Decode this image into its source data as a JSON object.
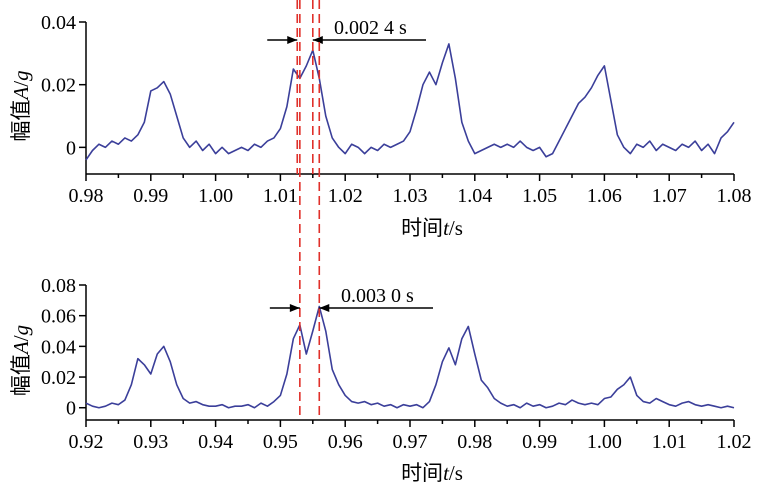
{
  "chart_data": [
    {
      "type": "line",
      "xlabel_prefix": "时间",
      "xlabel_var": "t",
      "xlabel_unit": "/s",
      "ylabel_prefix": "幅值",
      "ylabel_var": "A",
      "ylabel_sep": "/",
      "ylabel_unit": "g",
      "xlim": [
        0.98,
        1.08
      ],
      "ylim": [
        -0.0085,
        0.04
      ],
      "xticks": [
        0.98,
        0.99,
        1.0,
        1.01,
        1.02,
        1.03,
        1.04,
        1.05,
        1.06,
        1.07,
        1.08
      ],
      "xtick_labels": [
        "0.98",
        "0.99",
        "1.00",
        "1.01",
        "1.02",
        "1.03",
        "1.04",
        "1.05",
        "1.06",
        "1.07",
        "1.08"
      ],
      "yticks": [
        0,
        0.02,
        0.04
      ],
      "ytick_labels": [
        "0",
        "0.02",
        "0.04"
      ],
      "markers": [
        1.0126,
        1.015
      ],
      "annotation": "0.002 4 s",
      "series": [
        {
          "color": "#3b3f9a",
          "x": [
            0.98,
            0.981,
            0.982,
            0.983,
            0.984,
            0.985,
            0.986,
            0.987,
            0.988,
            0.989,
            0.99,
            0.991,
            0.992,
            0.993,
            0.994,
            0.995,
            0.996,
            0.997,
            0.998,
            0.999,
            1.0,
            1.001,
            1.002,
            1.003,
            1.004,
            1.005,
            1.006,
            1.007,
            1.008,
            1.009,
            1.01,
            1.011,
            1.012,
            1.013,
            1.014,
            1.015,
            1.016,
            1.017,
            1.018,
            1.019,
            1.02,
            1.021,
            1.022,
            1.023,
            1.024,
            1.025,
            1.026,
            1.027,
            1.028,
            1.029,
            1.03,
            1.031,
            1.032,
            1.033,
            1.034,
            1.035,
            1.036,
            1.037,
            1.038,
            1.039,
            1.04,
            1.041,
            1.042,
            1.043,
            1.044,
            1.045,
            1.046,
            1.047,
            1.048,
            1.049,
            1.05,
            1.051,
            1.052,
            1.053,
            1.054,
            1.055,
            1.056,
            1.057,
            1.058,
            1.059,
            1.06,
            1.061,
            1.062,
            1.063,
            1.064,
            1.065,
            1.066,
            1.067,
            1.068,
            1.069,
            1.07,
            1.071,
            1.072,
            1.073,
            1.074,
            1.075,
            1.076,
            1.077,
            1.078,
            1.079,
            1.08
          ],
          "y": [
            -0.004,
            -0.001,
            0.001,
            0.0,
            0.002,
            0.001,
            0.003,
            0.002,
            0.004,
            0.008,
            0.018,
            0.019,
            0.021,
            0.017,
            0.01,
            0.003,
            0.0,
            0.002,
            -0.001,
            0.001,
            -0.002,
            0.0,
            -0.002,
            -0.001,
            0.0,
            -0.001,
            0.001,
            0.0,
            0.002,
            0.003,
            0.006,
            0.013,
            0.025,
            0.022,
            0.026,
            0.031,
            0.022,
            0.01,
            0.003,
            0.0,
            -0.002,
            0.001,
            0.0,
            -0.002,
            0.0,
            -0.001,
            0.001,
            0.0,
            0.001,
            0.002,
            0.005,
            0.012,
            0.02,
            0.024,
            0.02,
            0.027,
            0.033,
            0.022,
            0.008,
            0.002,
            -0.002,
            -0.001,
            0.0,
            0.001,
            0.0,
            0.001,
            0.0,
            0.002,
            0.0,
            -0.001,
            0.0,
            -0.003,
            -0.002,
            0.002,
            0.006,
            0.01,
            0.014,
            0.016,
            0.019,
            0.023,
            0.026,
            0.015,
            0.004,
            0.0,
            -0.002,
            0.001,
            0.0,
            0.002,
            -0.001,
            0.001,
            0.0,
            -0.001,
            0.001,
            0.0,
            0.002,
            -0.001,
            0.001,
            -0.002,
            0.003,
            0.005,
            0.008
          ]
        }
      ]
    },
    {
      "type": "line",
      "xlabel_prefix": "时间",
      "xlabel_var": "t",
      "xlabel_unit": "/s",
      "ylabel_prefix": "幅值",
      "ylabel_var": "A",
      "ylabel_sep": "/",
      "ylabel_unit": "g",
      "xlim": [
        0.92,
        1.02
      ],
      "ylim": [
        -0.008,
        0.08
      ],
      "xticks": [
        0.92,
        0.93,
        0.94,
        0.95,
        0.96,
        0.97,
        0.98,
        0.99,
        1.0,
        1.01,
        1.02
      ],
      "xtick_labels": [
        "0.92",
        "0.93",
        "0.94",
        "0.95",
        "0.96",
        "0.97",
        "0.98",
        "0.99",
        "1.00",
        "1.01",
        "1.02"
      ],
      "yticks": [
        0,
        0.02,
        0.04,
        0.06,
        0.08
      ],
      "ytick_labels": [
        "0",
        "0.02",
        "0.04",
        "0.06",
        "0.08"
      ],
      "markers": [
        0.953,
        0.956
      ],
      "annotation": "0.003 0 s",
      "series": [
        {
          "color": "#3b3f9a",
          "x": [
            0.92,
            0.921,
            0.922,
            0.923,
            0.924,
            0.925,
            0.926,
            0.927,
            0.928,
            0.929,
            0.93,
            0.931,
            0.932,
            0.933,
            0.934,
            0.935,
            0.936,
            0.937,
            0.938,
            0.939,
            0.94,
            0.941,
            0.942,
            0.943,
            0.944,
            0.945,
            0.946,
            0.947,
            0.948,
            0.949,
            0.95,
            0.951,
            0.952,
            0.953,
            0.954,
            0.955,
            0.956,
            0.957,
            0.958,
            0.959,
            0.96,
            0.961,
            0.962,
            0.963,
            0.964,
            0.965,
            0.966,
            0.967,
            0.968,
            0.969,
            0.97,
            0.971,
            0.972,
            0.973,
            0.974,
            0.975,
            0.976,
            0.977,
            0.978,
            0.979,
            0.98,
            0.981,
            0.982,
            0.983,
            0.984,
            0.985,
            0.986,
            0.987,
            0.988,
            0.989,
            0.99,
            0.991,
            0.992,
            0.993,
            0.994,
            0.995,
            0.996,
            0.997,
            0.998,
            0.999,
            1.0,
            1.001,
            1.002,
            1.003,
            1.004,
            1.005,
            1.006,
            1.007,
            1.008,
            1.009,
            1.01,
            1.011,
            1.012,
            1.013,
            1.014,
            1.015,
            1.016,
            1.017,
            1.018,
            1.019,
            1.02
          ],
          "y": [
            0.003,
            0.001,
            0.0,
            0.001,
            0.003,
            0.002,
            0.005,
            0.015,
            0.032,
            0.028,
            0.022,
            0.035,
            0.04,
            0.03,
            0.015,
            0.006,
            0.003,
            0.004,
            0.002,
            0.001,
            0.001,
            0.002,
            0.0,
            0.001,
            0.001,
            0.002,
            0.0,
            0.003,
            0.001,
            0.004,
            0.008,
            0.022,
            0.045,
            0.054,
            0.035,
            0.05,
            0.066,
            0.05,
            0.025,
            0.015,
            0.008,
            0.004,
            0.003,
            0.004,
            0.002,
            0.003,
            0.001,
            0.002,
            0.0,
            0.002,
            0.001,
            0.002,
            0.0,
            0.004,
            0.015,
            0.03,
            0.039,
            0.028,
            0.045,
            0.053,
            0.035,
            0.018,
            0.013,
            0.006,
            0.003,
            0.001,
            0.002,
            0.0,
            0.003,
            0.001,
            0.002,
            0.0,
            0.001,
            0.003,
            0.002,
            0.005,
            0.003,
            0.002,
            0.003,
            0.002,
            0.006,
            0.007,
            0.012,
            0.015,
            0.02,
            0.008,
            0.004,
            0.003,
            0.006,
            0.004,
            0.002,
            0.001,
            0.003,
            0.004,
            0.002,
            0.001,
            0.002,
            0.001,
            0.0,
            0.001,
            0.0
          ]
        }
      ]
    }
  ]
}
